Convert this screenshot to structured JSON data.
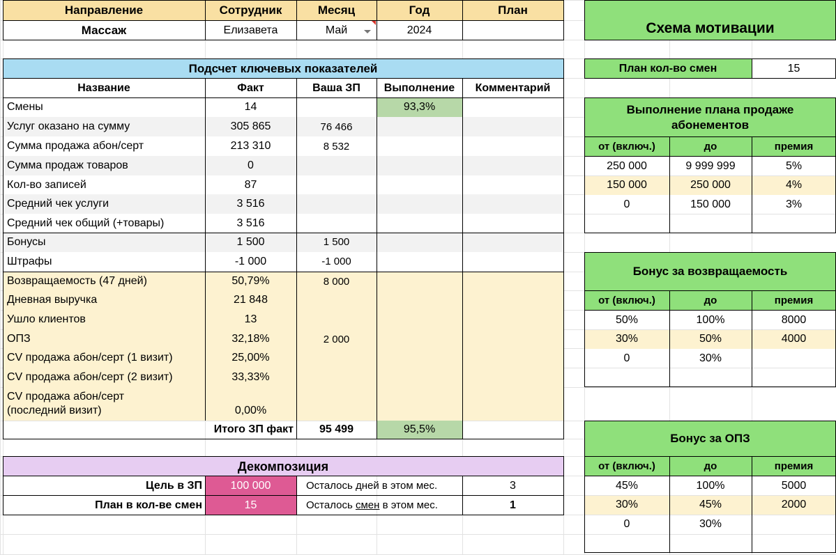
{
  "colors": {
    "header_yellow": "#f9e0a3",
    "section_blue": "#a9dcf2",
    "row_gray": "#f2f2f2",
    "row_cream": "#fdf2d0",
    "green_cell": "#b7d8a8",
    "green_header": "#8fe07b",
    "lavender": "#e7cdf2",
    "magenta": "#de5a94",
    "grid": "#e2e2e2"
  },
  "top": {
    "headers": [
      "Направление",
      "Сотрудник",
      "Месяц",
      "Год",
      "План"
    ],
    "values": [
      "Массаж",
      "Елизавета",
      "Май",
      "2024",
      ""
    ]
  },
  "kpi": {
    "title": "Подсчет ключевых показателей",
    "columns": [
      "Название",
      "Факт",
      "Ваша ЗП",
      "Выполнение",
      "Комментарий"
    ],
    "rows": [
      {
        "name": "Смены",
        "fact": "14",
        "zp": "",
        "done": "93,3%"
      },
      {
        "name": "Услуг оказано на сумму",
        "fact": "305 865",
        "zp": "76 466",
        "done": ""
      },
      {
        "name": "Сумма продажа абон/серт",
        "fact": "213 310",
        "zp": "8 532",
        "done": ""
      },
      {
        "name": "Сумма продаж товаров",
        "fact": "0",
        "zp": "",
        "done": ""
      },
      {
        "name": "Кол-во записей",
        "fact": "87",
        "zp": "",
        "done": ""
      },
      {
        "name": "Средний чек услуги",
        "fact": "3 516",
        "zp": "",
        "done": ""
      },
      {
        "name": "Средний чек общий (+товары)",
        "fact": "3 516",
        "zp": "",
        "done": ""
      },
      {
        "name": "Бонусы",
        "fact": "1 500",
        "zp": "1 500",
        "done": ""
      },
      {
        "name": "Штрафы",
        "fact": "-1 000",
        "zp": "-1 000",
        "done": ""
      },
      {
        "name": "Возвращаемость (47 дней)",
        "fact": "50,79%",
        "zp": "8 000",
        "done": ""
      },
      {
        "name": "Дневная выручка",
        "fact": "21 848",
        "zp": "",
        "done": ""
      },
      {
        "name": "Ушло клиентов",
        "fact": "13",
        "zp": "",
        "done": ""
      },
      {
        "name": "ОПЗ",
        "fact": "32,18%",
        "zp": "2 000",
        "done": ""
      },
      {
        "name": "CV продажа абон/серт (1 визит)",
        "fact": "25,00%",
        "zp": "",
        "done": ""
      },
      {
        "name": "CV продажа абон/серт (2 визит)",
        "fact": "33,33%",
        "zp": "",
        "done": ""
      },
      {
        "name": "CV продажа абон/серт (последний визит)",
        "fact": "0,00%",
        "zp": "",
        "done": ""
      }
    ],
    "total_label": "Итого ЗП факт",
    "total_value": "95 499",
    "total_done": "95,5%"
  },
  "decomp": {
    "title": "Декомпозиция",
    "goal_label": "Цель в ЗП",
    "goal_value": "100 000",
    "plan_label": "План в кол-ве смен",
    "plan_value": "15",
    "days_left_label": "Осталось дней в этом мес.",
    "days_left_value": "3",
    "shifts_left_pre": "Осталось ",
    "shifts_left_word": "смен",
    "shifts_left_post": " в этом мес.",
    "shifts_left_value": "1"
  },
  "motivation": {
    "title": "Схема мотивации",
    "plan_shifts_label": "План кол-во смен",
    "plan_shifts_value": "15",
    "sections": [
      {
        "title": "Выполнение плана продаже абонементов",
        "cols": [
          "от (включ.)",
          "до",
          "премия"
        ],
        "rows": [
          [
            "250 000",
            "9 999 999",
            "5%"
          ],
          [
            "150 000",
            "250 000",
            "4%"
          ],
          [
            "0",
            "150 000",
            "3%"
          ],
          [
            "",
            "",
            ""
          ]
        ]
      },
      {
        "title": "Бонус за возвращаемость",
        "cols": [
          "от (включ.)",
          "до",
          "премия"
        ],
        "rows": [
          [
            "50%",
            "100%",
            "8000"
          ],
          [
            "30%",
            "50%",
            "4000"
          ],
          [
            "0",
            "30%",
            ""
          ],
          [
            "",
            "",
            ""
          ]
        ]
      },
      {
        "title": "Бонус за ОПЗ",
        "cols": [
          "от (включ.)",
          "до",
          "премия"
        ],
        "rows": [
          [
            "45%",
            "100%",
            "5000"
          ],
          [
            "30%",
            "45%",
            "2000"
          ],
          [
            "0",
            "30%",
            ""
          ],
          [
            "",
            "",
            ""
          ]
        ]
      }
    ]
  }
}
